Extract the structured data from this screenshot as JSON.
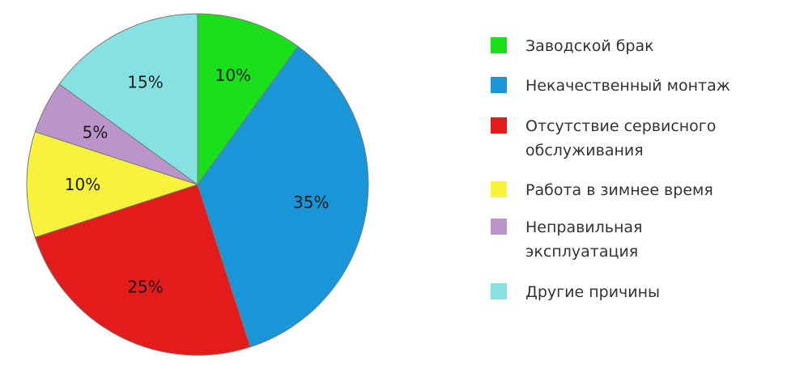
{
  "chart_data": {
    "type": "pie",
    "title": "",
    "categories": [
      "Заводской брак",
      "Некачественный монтаж",
      "Отсутствие сервисного обслуживания",
      "Работа в зимнее время",
      "Неправильная эксплуатация",
      "Другие причины"
    ],
    "values": [
      10,
      35,
      25,
      10,
      5,
      15
    ],
    "data_labels": [
      "10%",
      "35%",
      "25%",
      "10%",
      "5%",
      "15%"
    ],
    "colors": [
      "#19e01a",
      "#1896d8",
      "#e31b1b",
      "#f7f23b",
      "#bb94c9",
      "#86e2e2"
    ],
    "start_angle_deg": 0,
    "direction": "clockwise",
    "legend": {
      "position": "right",
      "entries": [
        {
          "lines": [
            "Заводской брак"
          ]
        },
        {
          "lines": [
            "Некачественный монтаж"
          ]
        },
        {
          "lines": [
            "Отсутствие сервисного",
            "обслуживания"
          ]
        },
        {
          "lines": [
            "Работа в зимнее время"
          ]
        },
        {
          "lines": [
            "Неправильная",
            "эксплуатация"
          ]
        },
        {
          "lines": [
            "Другие причины"
          ]
        }
      ]
    }
  }
}
